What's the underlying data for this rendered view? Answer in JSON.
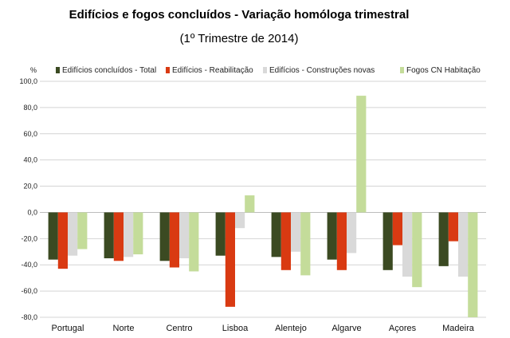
{
  "chart_data": {
    "type": "bar",
    "title": "Edifícios e fogos concluídos - Variação homóloga trimestral",
    "subtitle": "(1º Trimestre de 2014)",
    "ylabel": "%",
    "xlabel": "",
    "ylim": [
      -80,
      100
    ],
    "yticks": [
      "100,0",
      "80,0",
      "60,0",
      "40,0",
      "20,0",
      "0,0",
      "-20,0",
      "-40,0",
      "-60,0",
      "-80,0"
    ],
    "ytick_values": [
      100,
      80,
      60,
      40,
      20,
      0,
      -20,
      -40,
      -60,
      -80
    ],
    "grid": true,
    "legend_position": "top",
    "categories": [
      "Portugal",
      "Norte",
      "Centro",
      "Lisboa",
      "Alentejo",
      "Algarve",
      "Açores",
      "Madeira"
    ],
    "series": [
      {
        "name": "Edifícios concluídos - Total",
        "color": "#3b4a22",
        "values": [
          -36,
          -35,
          -37,
          -33,
          -34,
          -36,
          -44,
          -41
        ]
      },
      {
        "name": "Edifícios - Reabilitação",
        "color": "#d93a12",
        "values": [
          -43,
          -37,
          -42,
          -72,
          -44,
          -44,
          -25,
          -22
        ]
      },
      {
        "name": "Edifícios - Construções novas",
        "color": "#d9d9d9",
        "values": [
          -33,
          -34,
          -35,
          -12,
          -30,
          -31,
          -49,
          -49
        ]
      },
      {
        "name": "Fogos CN Habitação",
        "color": "#c4dc9a",
        "values": [
          -28,
          -32,
          -45,
          13,
          -48,
          89,
          -57,
          -80
        ]
      }
    ]
  }
}
